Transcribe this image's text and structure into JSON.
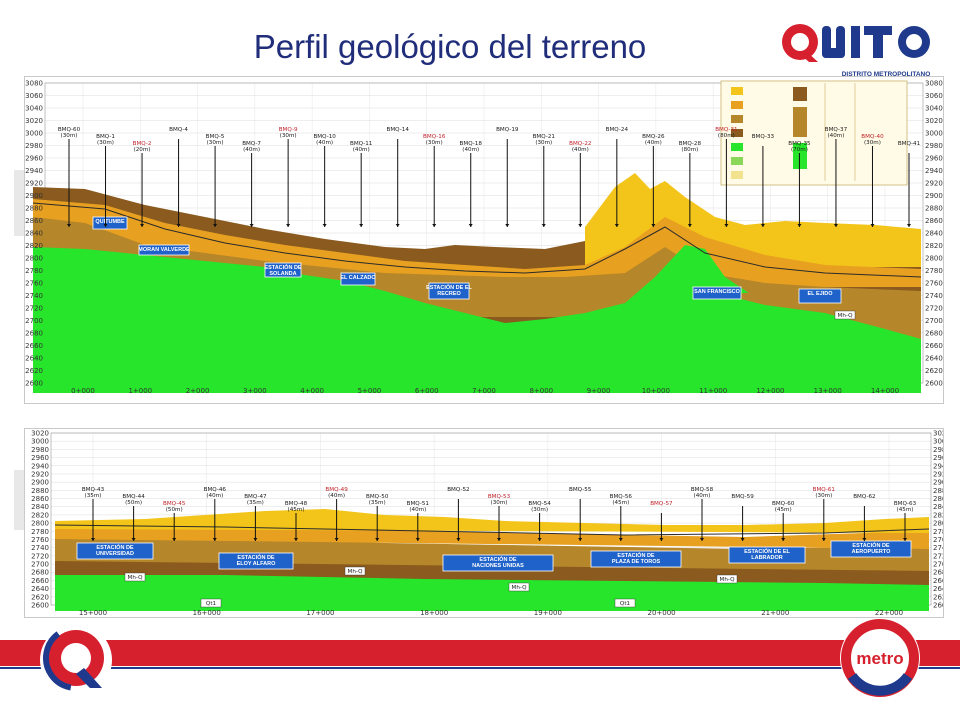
{
  "title": "Perfil geológico del terreno",
  "brand": {
    "quito_wordmark": "QUITO",
    "quito_subtitle": "DISTRITO METROPOLITANO",
    "metro_logo": "metro"
  },
  "colors": {
    "bedrock_green": "#27e52b",
    "yellow_soil": "#f3c51a",
    "orange_soil": "#e8a020",
    "brown_soil": "#b5862a",
    "dark_brown": "#8a5a1e",
    "station_blue": "#1f62c9",
    "footer_red": "#d6202e"
  },
  "profile1": {
    "y_ticks": [
      "3080",
      "3060",
      "3040",
      "3020",
      "3000",
      "2980",
      "2960",
      "2940",
      "2920",
      "2900",
      "2880",
      "2860",
      "2840",
      "2820",
      "2800",
      "2780",
      "2760",
      "2740",
      "2720",
      "2700",
      "2680",
      "2660",
      "2640",
      "2620",
      "2600"
    ],
    "x_ticks": [
      "0+000",
      "1+000",
      "2+000",
      "3+000",
      "4+000",
      "5+000",
      "6+000",
      "7+000",
      "8+000",
      "9+000",
      "10+000",
      "11+000",
      "12+000",
      "13+000",
      "14+000"
    ],
    "stations": [
      {
        "label": "QUITUMBE"
      },
      {
        "label": "MORAN VALVERDE"
      },
      {
        "label": "ESTACIÓN DE SOLANDA"
      },
      {
        "label": "EL CALZADO"
      },
      {
        "label": "ESTACIÓN DE EL RECREO"
      },
      {
        "label": "SAN FRANCISCO"
      },
      {
        "label": "EL EJIDO"
      }
    ],
    "boreholes": [
      {
        "id": "BMQ-60",
        "depth": "(30m)"
      },
      {
        "id": "BMQ-1",
        "depth": "(30m)"
      },
      {
        "id": "BMQ-2",
        "depth": "(20m)"
      },
      {
        "id": "BMQ-4",
        "depth": ""
      },
      {
        "id": "BMQ-5",
        "depth": "(30m)"
      },
      {
        "id": "BMQ-7",
        "depth": "(40m)"
      },
      {
        "id": "BMQ-9",
        "depth": "(30m)"
      },
      {
        "id": "BMQ-10",
        "depth": "(40m)"
      },
      {
        "id": "BMQ-11",
        "depth": "(40m)"
      },
      {
        "id": "BMQ-14",
        "depth": ""
      },
      {
        "id": "BMQ-16",
        "depth": "(30m)"
      },
      {
        "id": "BMQ-18",
        "depth": "(40m)"
      },
      {
        "id": "BMQ-19",
        "depth": ""
      },
      {
        "id": "BMQ-21",
        "depth": "(30m)"
      },
      {
        "id": "BMQ-22",
        "depth": "(40m)"
      },
      {
        "id": "BMQ-24",
        "depth": ""
      },
      {
        "id": "BMQ-26",
        "depth": "(40m)"
      },
      {
        "id": "BMQ-28",
        "depth": "(80m)"
      },
      {
        "id": "BMQ-31",
        "depth": "(80m)"
      },
      {
        "id": "BMQ-33",
        "depth": ""
      },
      {
        "id": "BMQ-35",
        "depth": "(70m)"
      },
      {
        "id": "BMQ-37",
        "depth": "(40m)"
      },
      {
        "id": "BMQ-40",
        "depth": "(30m)"
      },
      {
        "id": "BMQ-41",
        "depth": ""
      }
    ],
    "unit_labels": [
      "Mh-Q"
    ]
  },
  "profile2": {
    "y_ticks": [
      "3020",
      "3000",
      "2980",
      "2960",
      "2940",
      "2920",
      "2900",
      "2880",
      "2860",
      "2840",
      "2820",
      "2800",
      "2780",
      "2760",
      "2740",
      "2720",
      "2700",
      "2680",
      "2660",
      "2640",
      "2620",
      "2600"
    ],
    "x_ticks": [
      "15+000",
      "16+000",
      "17+000",
      "18+000",
      "19+000",
      "20+000",
      "21+000",
      "22+000"
    ],
    "stations": [
      {
        "label": "ESTACIÓN DE UNIVERSIDAD"
      },
      {
        "label": "ESTACIÓN DE ELOY ALFARO"
      },
      {
        "label": "ESTACIÓN DE NACIONES UNIDAS"
      },
      {
        "label": "ESTACIÓN DE PLAZA DE TOROS"
      },
      {
        "label": "ESTACIÓN DE EL LABRADOR"
      },
      {
        "label": "ESTACIÓN DE AEROPUERTO"
      }
    ],
    "boreholes": [
      {
        "id": "BMQ-43",
        "depth": "(35m)"
      },
      {
        "id": "BMQ-44",
        "depth": "(50m)"
      },
      {
        "id": "BMQ-45",
        "depth": "(50m)"
      },
      {
        "id": "BMQ-46",
        "depth": "(40m)"
      },
      {
        "id": "BMQ-47",
        "depth": "(35m)"
      },
      {
        "id": "BMQ-48",
        "depth": "(45m)"
      },
      {
        "id": "BMQ-49",
        "depth": "(40m)"
      },
      {
        "id": "BMQ-50",
        "depth": "(35m)"
      },
      {
        "id": "BMQ-51",
        "depth": "(40m)"
      },
      {
        "id": "BMQ-52",
        "depth": ""
      },
      {
        "id": "BMQ-53",
        "depth": "(30m)"
      },
      {
        "id": "BMQ-54",
        "depth": "(30m)"
      },
      {
        "id": "BMQ-55",
        "depth": ""
      },
      {
        "id": "BMQ-56",
        "depth": "(45m)"
      },
      {
        "id": "BMQ-57",
        "depth": ""
      },
      {
        "id": "BMQ-58",
        "depth": "(40m)"
      },
      {
        "id": "BMQ-59",
        "depth": ""
      },
      {
        "id": "BMQ-60",
        "depth": "(45m)"
      },
      {
        "id": "BMQ-61",
        "depth": "(30m)"
      },
      {
        "id": "BMQ-62",
        "depth": ""
      },
      {
        "id": "BMQ-63",
        "depth": "(45m)"
      }
    ],
    "unit_labels": [
      "Mh-Q",
      "Mh-Q",
      "Mh-Q",
      "Mh-Q",
      "Qt1",
      "Qt1"
    ]
  }
}
